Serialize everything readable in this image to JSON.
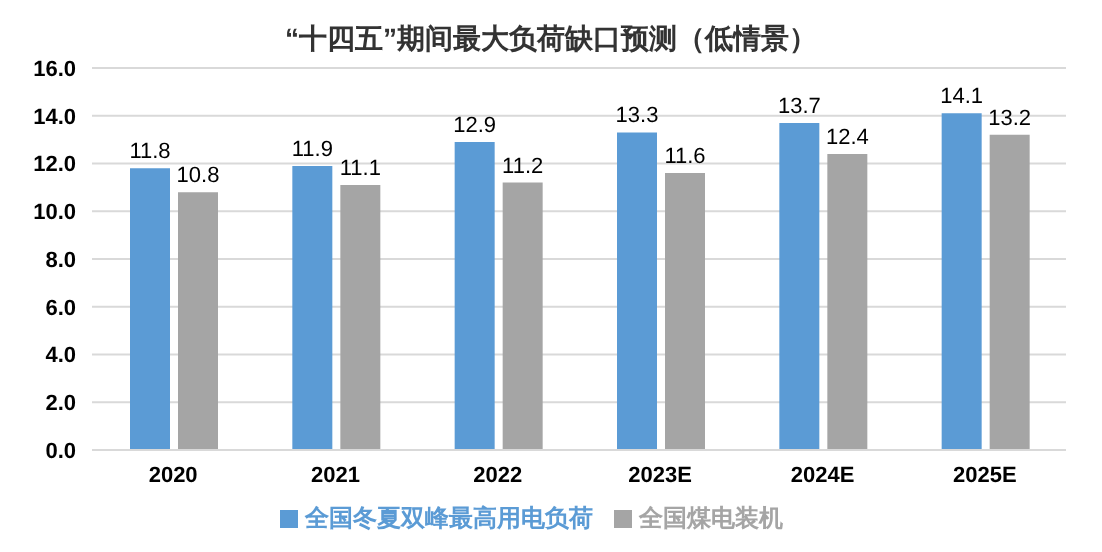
{
  "chart_data": {
    "type": "bar",
    "title": "“十四五”期间最大负荷缺口预测（低情景）",
    "categories": [
      "2020",
      "2021",
      "2022",
      "2023E",
      "2024E",
      "2025E"
    ],
    "series": [
      {
        "name": "全国冬夏双峰最高用电负荷",
        "color": "#5b9bd5",
        "values": [
          11.8,
          11.9,
          12.9,
          13.3,
          13.7,
          14.1
        ]
      },
      {
        "name": "全国煤电装机",
        "color": "#a5a5a5",
        "values": [
          10.8,
          11.1,
          11.2,
          11.6,
          12.4,
          13.2
        ]
      }
    ],
    "ylim": [
      0,
      16
    ],
    "yticks": [
      {
        "value": 0,
        "label": "0.0"
      },
      {
        "value": 2,
        "label": "2.0"
      },
      {
        "value": 4,
        "label": "4.0"
      },
      {
        "value": 6,
        "label": "6.0"
      },
      {
        "value": 8,
        "label": "8.0"
      },
      {
        "value": 10,
        "label": "10.0"
      },
      {
        "value": 12,
        "label": "12.0"
      },
      {
        "value": 14,
        "label": "14.0"
      },
      {
        "value": 16,
        "label": "16.0"
      }
    ],
    "grid": "y",
    "legend": "bottom",
    "data_labels": true
  }
}
